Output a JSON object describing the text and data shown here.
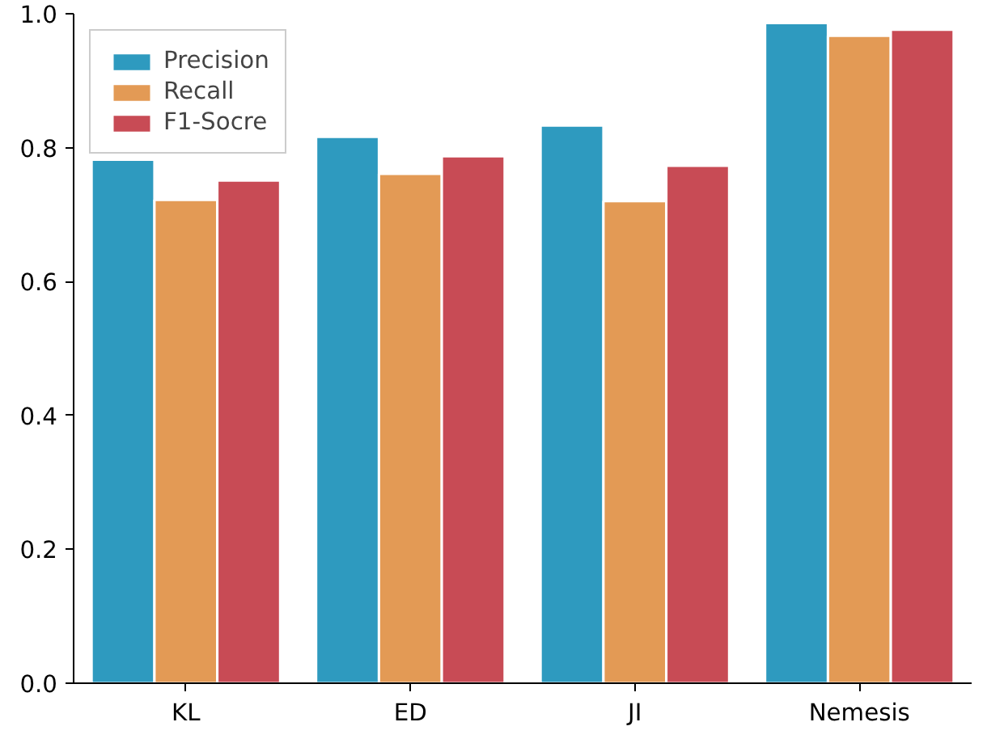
{
  "chart_data": {
    "type": "bar",
    "categories": [
      "KL",
      "ED",
      "JI",
      "Nemesis"
    ],
    "series": [
      {
        "name": "Precision",
        "color": "#2e9abf",
        "values": [
          0.782,
          0.816,
          0.833,
          0.986
        ]
      },
      {
        "name": "Recall",
        "color": "#e39a55",
        "values": [
          0.722,
          0.761,
          0.72,
          0.967
        ]
      },
      {
        "name": "F1-Socre",
        "color": "#c84b55",
        "values": [
          0.751,
          0.787,
          0.773,
          0.976
        ]
      }
    ],
    "ylim": [
      0,
      1
    ],
    "yticks": [
      {
        "value": 0,
        "label": "0.0"
      },
      {
        "value": 0.2,
        "label": "0.2"
      },
      {
        "value": 0.4,
        "label": "0.4"
      },
      {
        "value": 0.6,
        "label": "0.6"
      },
      {
        "value": 0.8,
        "label": "0.8"
      },
      {
        "value": 1,
        "label": "1.0"
      }
    ],
    "grid": false,
    "legend": "top left"
  }
}
